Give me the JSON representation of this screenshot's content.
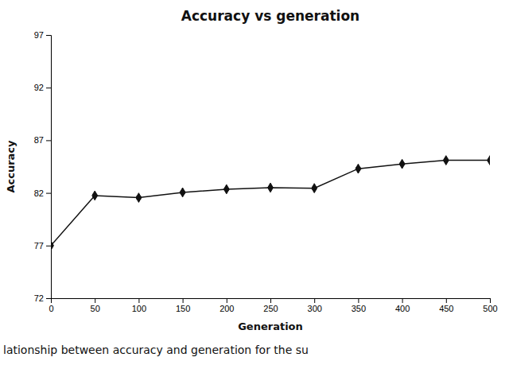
{
  "chart_data": {
    "type": "line",
    "title": "Accuracy vs generation",
    "xlabel": "Generation",
    "ylabel": "Accuracy",
    "x": [
      0,
      50,
      100,
      150,
      200,
      250,
      300,
      350,
      400,
      450,
      500
    ],
    "values": [
      77.0,
      81.75,
      81.55,
      82.05,
      82.35,
      82.5,
      82.45,
      84.3,
      84.75,
      85.1,
      85.1
    ],
    "yerr": [
      0.05,
      0.12,
      0.12,
      0.12,
      0.1,
      0.1,
      0.1,
      0.12,
      0.1,
      0.1,
      0.1
    ],
    "xlim": [
      0,
      500
    ],
    "ylim": [
      72,
      97
    ],
    "xticks": [
      0,
      50,
      100,
      150,
      200,
      250,
      300,
      350,
      400,
      450,
      500
    ],
    "yticks": [
      72,
      77,
      82,
      87,
      92,
      97
    ],
    "color": "#111111",
    "marker": "diamond",
    "line_style": "solid",
    "grid": false,
    "annotations": [
      "lationship between accuracy and generation for the su"
    ]
  }
}
